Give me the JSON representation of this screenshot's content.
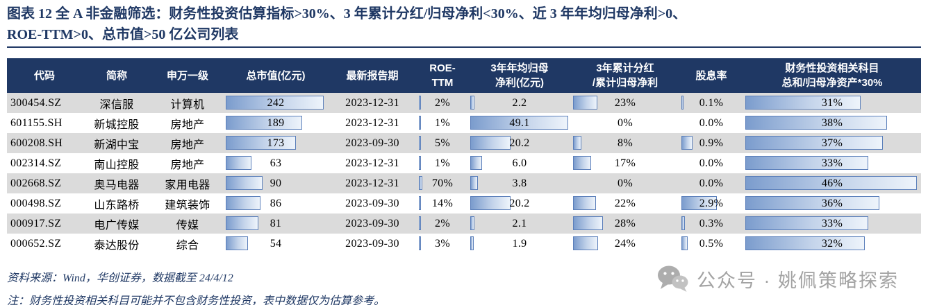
{
  "title": {
    "line1": "图表 12  全 A 非金融筛选：财务性投资估算指标>30%、3 年累计分红/归母净利<30%、近 3 年年均归母净利>0、",
    "line2": "ROE-TTM>0、总市值>50 亿公司列表"
  },
  "chart_data": {
    "type": "table",
    "title": "全A非金融筛选：财务性投资估算指标>30%、3年累计分红/归母净利<30%、近3年年均归母净利>0、ROE-TTM>0、总市值>50亿公司列表",
    "columns": [
      {
        "field": "code",
        "label": "代码",
        "type": "text",
        "align": "left"
      },
      {
        "field": "name",
        "label": "简称",
        "type": "text"
      },
      {
        "field": "industry",
        "label": "申万一级",
        "type": "text"
      },
      {
        "field": "mktcap",
        "label": "总市值(亿元)",
        "type": "bar",
        "max": 250
      },
      {
        "field": "report",
        "label": "最新报告期",
        "type": "text"
      },
      {
        "field": "roe",
        "label": "ROE-TTM",
        "label_lines": [
          "ROE-",
          "TTM"
        ],
        "type": "bar",
        "max": 1000
      },
      {
        "field": "profit",
        "label": "3年年均归母净利(亿元)",
        "label_lines": [
          "3年年均归母",
          "净利(亿元)"
        ],
        "type": "bar",
        "max": 50
      },
      {
        "field": "payout",
        "label": "3年累计分红/累计归母净利",
        "label_lines": [
          "3年累计分红",
          "/累计归母净利"
        ],
        "type": "bar",
        "max": 100
      },
      {
        "field": "yield",
        "label": "股息率",
        "type": "bar",
        "max": 5
      },
      {
        "field": "fininv",
        "label": "财务性投资相关科目总和/归母净资产*30%",
        "label_lines": [
          "财务性投资相关科目",
          "总和/归母净资产*30%"
        ],
        "type": "bar",
        "max": 47
      }
    ],
    "rows": [
      {
        "code": "300454.SZ",
        "name": "深信服",
        "industry": "计算机",
        "mktcap": 242,
        "mktcap_text": "242",
        "report": "2023-12-31",
        "roe": 2,
        "roe_text": "2%",
        "profit": 2.2,
        "profit_text": "2.2",
        "payout": 23,
        "payout_text": "23%",
        "yield": 0.1,
        "yield_text": "0.1%",
        "fininv": 31,
        "fininv_text": "31%"
      },
      {
        "code": "601155.SH",
        "name": "新城控股",
        "industry": "房地产",
        "mktcap": 189,
        "mktcap_text": "189",
        "report": "2023-12-31",
        "roe": 1,
        "roe_text": "1%",
        "profit": 49.1,
        "profit_text": "49.1",
        "payout": 0,
        "payout_text": "0%",
        "yield": 0,
        "yield_text": "0.0%",
        "fininv": 38,
        "fininv_text": "38%"
      },
      {
        "code": "600208.SH",
        "name": "新湖中宝",
        "industry": "房地产",
        "mktcap": 173,
        "mktcap_text": "173",
        "report": "2023-09-30",
        "roe": 5,
        "roe_text": "5%",
        "profit": 20.2,
        "profit_text": "20.2",
        "payout": 8,
        "payout_text": "8%",
        "yield": 0.9,
        "yield_text": "0.9%",
        "fininv": 37,
        "fininv_text": "37%"
      },
      {
        "code": "002314.SZ",
        "name": "南山控股",
        "industry": "房地产",
        "mktcap": 63,
        "mktcap_text": "63",
        "report": "2023-12-31",
        "roe": 1,
        "roe_text": "1%",
        "profit": 6.0,
        "profit_text": "6.0",
        "payout": 17,
        "payout_text": "17%",
        "yield": 0,
        "yield_text": "0.0%",
        "fininv": 33,
        "fininv_text": "33%"
      },
      {
        "code": "002668.SZ",
        "name": "奥马电器",
        "industry": "家用电器",
        "mktcap": 90,
        "mktcap_text": "90",
        "report": "2023-12-31",
        "roe": 70,
        "roe_text": "70%",
        "profit": 3.8,
        "profit_text": "3.8",
        "payout": 0,
        "payout_text": "0%",
        "yield": 0,
        "yield_text": "0.0%",
        "fininv": 46,
        "fininv_text": "46%"
      },
      {
        "code": "000498.SZ",
        "name": "山东路桥",
        "industry": "建筑装饰",
        "mktcap": 86,
        "mktcap_text": "86",
        "report": "2023-09-30",
        "roe": 14,
        "roe_text": "14%",
        "profit": 20.2,
        "profit_text": "20.2",
        "payout": 22,
        "payout_text": "22%",
        "yield": 2.9,
        "yield_text": "2.9%",
        "fininv": 36,
        "fininv_text": "36%"
      },
      {
        "code": "000917.SZ",
        "name": "电广传媒",
        "industry": "传媒",
        "mktcap": 81,
        "mktcap_text": "81",
        "report": "2023-09-30",
        "roe": 2,
        "roe_text": "2%",
        "profit": 2.1,
        "profit_text": "2.1",
        "payout": 28,
        "payout_text": "28%",
        "yield": 0.3,
        "yield_text": "0.3%",
        "fininv": 33,
        "fininv_text": "33%"
      },
      {
        "code": "000652.SZ",
        "name": "泰达股份",
        "industry": "综合",
        "mktcap": 54,
        "mktcap_text": "54",
        "report": "2023-09-30",
        "roe": 3,
        "roe_text": "3%",
        "profit": 1.9,
        "profit_text": "1.9",
        "payout": 24,
        "payout_text": "24%",
        "yield": 0.5,
        "yield_text": "0.5%",
        "fininv": 32,
        "fininv_text": "32%"
      }
    ],
    "legend_position": "none",
    "grid": false
  },
  "footer": {
    "source": "资料来源：Wind，华创证券，数据截至 24/4/12",
    "note": "注：财务性投资相关科目可能并不包含财务性投资，表中数据仅为估算参考。"
  },
  "watermark": {
    "icon": "wechat-icon",
    "label": "公众号 · 姚佩策略探索"
  },
  "colors": {
    "navy": "#1f3864",
    "row_alt_gray": "#dbdbdb",
    "bar_border": "#5b7fba",
    "bar_fill": "#7b9ccd",
    "watermark_gray": "#a3a3a3"
  }
}
